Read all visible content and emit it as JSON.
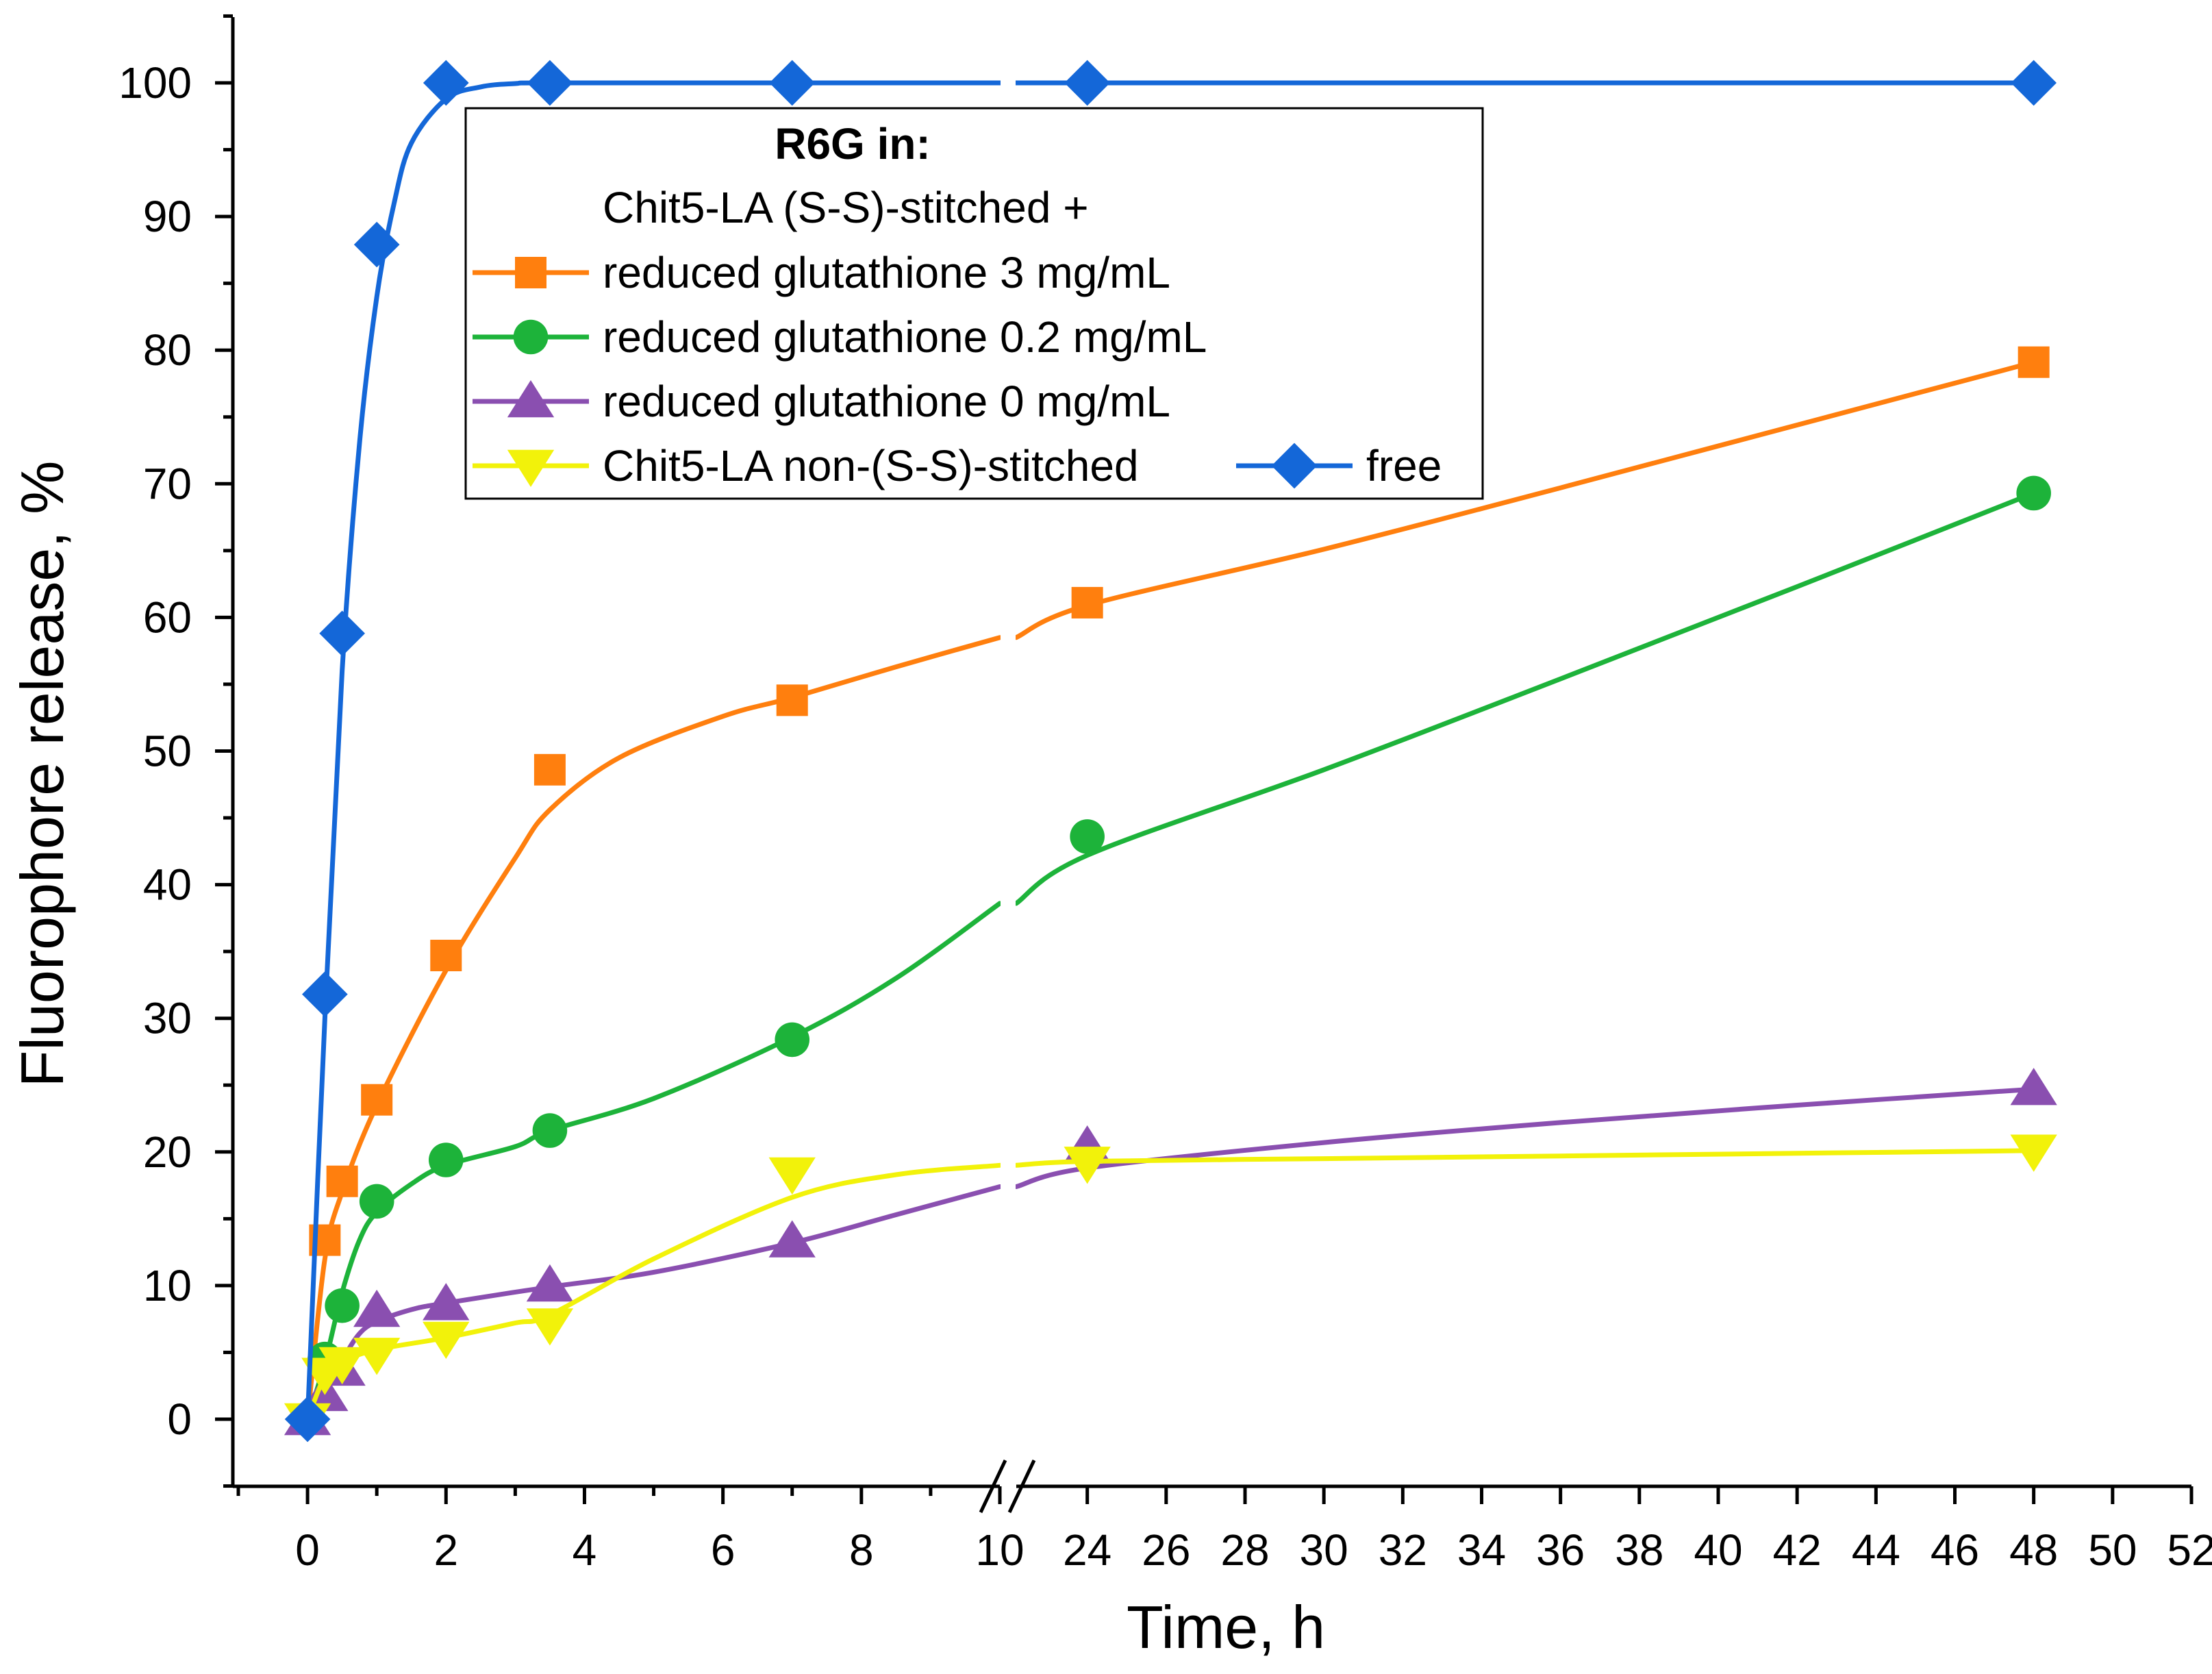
{
  "chart_data": {
    "type": "line",
    "title": "",
    "xlabel": "Time, h",
    "ylabel": "Fluorophore release, %",
    "ylim": [
      0,
      100
    ],
    "x_segments": [
      {
        "xlim": [
          -1,
          10
        ],
        "ticks": [
          0,
          2,
          4,
          6,
          8,
          10
        ]
      },
      {
        "xlim": [
          22.2,
          52
        ],
        "ticks": [
          24,
          26,
          28,
          30,
          32,
          34,
          36,
          38,
          40,
          42,
          44,
          46,
          48,
          50,
          52
        ]
      }
    ],
    "y_ticks": [
      0,
      10,
      20,
      30,
      40,
      50,
      60,
      70,
      80,
      90,
      100
    ],
    "axis_break": true,
    "legend": {
      "title": "R6G in:",
      "subtitle": "Chit5-LA (S-S)-stitched +",
      "placement": "top-center"
    },
    "series": [
      {
        "name": "reduced glutathione 3 mg/mL",
        "color": "#ff7f0e",
        "marker": "square",
        "x": [
          0,
          0.25,
          0.5,
          1,
          2,
          3.5,
          7,
          24,
          48
        ],
        "values": [
          0,
          13.4,
          17.8,
          23.9,
          34.7,
          48.6,
          53.8,
          61.1,
          79.1
        ],
        "fit": [
          [
            0,
            0
          ],
          [
            0.25,
            12
          ],
          [
            0.5,
            17
          ],
          [
            1,
            23.5
          ],
          [
            2,
            33.6
          ],
          [
            3,
            42
          ],
          [
            3.5,
            45.6
          ],
          [
            4.5,
            49.5
          ],
          [
            6,
            52.6
          ],
          [
            7,
            54
          ],
          [
            8.5,
            56.3
          ],
          [
            10,
            58.5
          ],
          [
            22.2,
            58.5
          ],
          [
            24,
            60.9
          ],
          [
            30,
            65.1
          ],
          [
            36,
            69.7
          ],
          [
            42,
            74.4
          ],
          [
            48,
            79.1
          ]
        ]
      },
      {
        "name": "reduced glutathione 0.2 mg/mL",
        "color": "#1db33a",
        "marker": "circle",
        "x": [
          0,
          0.25,
          0.5,
          1,
          2,
          3.5,
          7,
          24,
          48
        ],
        "values": [
          0,
          4.5,
          8.5,
          16.3,
          19.4,
          21.6,
          28.4,
          43.6,
          69.3
        ],
        "fit": [
          [
            0,
            0
          ],
          [
            0.25,
            4.2
          ],
          [
            0.5,
            9.5
          ],
          [
            0.75,
            13.4
          ],
          [
            1,
            15.5
          ],
          [
            1.5,
            17.6
          ],
          [
            2,
            19
          ],
          [
            3,
            20.4
          ],
          [
            3.5,
            21.6
          ],
          [
            5,
            24
          ],
          [
            7,
            28.6
          ],
          [
            8.5,
            33
          ],
          [
            10,
            38.6
          ],
          [
            22.2,
            38.6
          ],
          [
            24,
            42.2
          ],
          [
            30,
            48.6
          ],
          [
            36,
            55.4
          ],
          [
            42,
            62.3
          ],
          [
            48,
            69.3
          ]
        ]
      },
      {
        "name": "reduced glutathione 0 mg/mL",
        "color": "#8a4fb0",
        "marker": "triangle-up",
        "x": [
          0,
          0.25,
          0.5,
          1,
          2,
          3.5,
          7,
          24,
          48
        ],
        "values": [
          0,
          1.8,
          3.7,
          8.1,
          8.6,
          10,
          13.3,
          20.4,
          24.7
        ],
        "fit": [
          [
            0,
            0
          ],
          [
            0.25,
            1.9
          ],
          [
            0.5,
            4.4
          ],
          [
            0.75,
            6.4
          ],
          [
            1,
            7.3
          ],
          [
            1.5,
            8.2
          ],
          [
            2,
            8.7
          ],
          [
            3.5,
            9.9
          ],
          [
            5,
            11
          ],
          [
            7,
            13.2
          ],
          [
            8.5,
            15.3
          ],
          [
            10,
            17.4
          ],
          [
            22.2,
            17.4
          ],
          [
            24,
            18.8
          ],
          [
            30,
            20.7
          ],
          [
            36,
            22.2
          ],
          [
            42,
            23.5
          ],
          [
            48,
            24.7
          ]
        ]
      },
      {
        "name": "Chit5-LA non-(S-S)-stitched",
        "color": "#f2f20a",
        "marker": "triangle-down",
        "x": [
          0,
          0.25,
          0.5,
          1,
          2,
          3.5,
          7,
          24,
          48
        ],
        "values": [
          0,
          3.4,
          4.2,
          4.9,
          6.1,
          7.1,
          18.4,
          19.2,
          20.1
        ],
        "fit": [
          [
            0,
            0
          ],
          [
            0.25,
            3.2
          ],
          [
            0.5,
            4.3
          ],
          [
            1,
            5.2
          ],
          [
            2,
            6.1
          ],
          [
            3,
            7.2
          ],
          [
            3.5,
            7.8
          ],
          [
            5,
            12
          ],
          [
            7,
            16.6
          ],
          [
            8.5,
            18.3
          ],
          [
            10,
            19
          ],
          [
            22.2,
            19
          ],
          [
            24,
            19.3
          ],
          [
            30,
            19.5
          ],
          [
            36,
            19.7
          ],
          [
            42,
            19.9
          ],
          [
            48,
            20.1
          ]
        ]
      },
      {
        "name": "free",
        "color": "#1467d8",
        "marker": "diamond",
        "x": [
          0,
          0.25,
          0.5,
          1,
          2,
          3.5,
          7,
          24,
          48
        ],
        "values": [
          0,
          31.8,
          58.8,
          87.9,
          100,
          100,
          100,
          100,
          100
        ],
        "fit": [
          [
            0,
            0
          ],
          [
            0.25,
            30
          ],
          [
            0.5,
            56
          ],
          [
            0.75,
            73
          ],
          [
            1,
            84
          ],
          [
            1.25,
            91
          ],
          [
            1.5,
            95.5
          ],
          [
            2,
            98.8
          ],
          [
            2.5,
            99.7
          ],
          [
            3,
            99.95
          ],
          [
            3.5,
            100
          ],
          [
            7,
            100
          ],
          [
            10,
            100
          ],
          [
            22.2,
            100
          ],
          [
            24,
            100
          ],
          [
            48,
            100
          ]
        ]
      }
    ]
  }
}
